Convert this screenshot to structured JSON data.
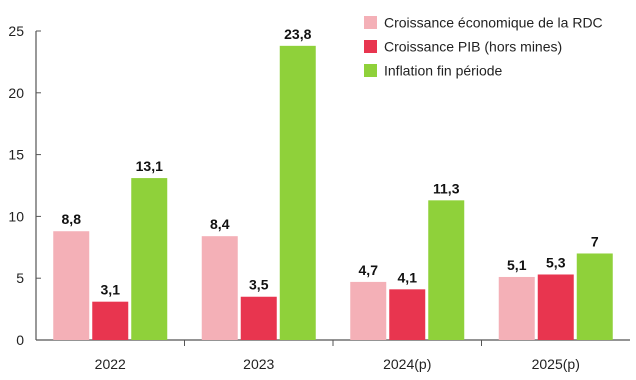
{
  "chart_data": {
    "type": "bar",
    "categories": [
      "2022",
      "2023",
      "2024(p)",
      "2025(p)"
    ],
    "series": [
      {
        "name": "Croissance économique de la RDC",
        "values": [
          8.8,
          8.4,
          4.7,
          5.1
        ],
        "labels": [
          "8,8",
          "8,4",
          "4,7",
          "5,1"
        ],
        "color": "#f4b0b7"
      },
      {
        "name": "Croissance PIB (hors mines)",
        "values": [
          3.1,
          3.5,
          4.1,
          5.3
        ],
        "labels": [
          "3,1",
          "3,5",
          "4,1",
          "5,3"
        ],
        "color": "#e8354f"
      },
      {
        "name": "Inflation fin période",
        "values": [
          13.1,
          23.8,
          11.3,
          7
        ],
        "labels": [
          "13,1",
          "23,8",
          "11,3",
          "7"
        ],
        "color": "#8fd13a"
      }
    ],
    "y_ticks": [
      "0",
      "5",
      "10",
      "15",
      "20",
      "25"
    ],
    "y_tick_values": [
      0,
      5,
      10,
      15,
      20,
      25
    ],
    "ylim": [
      0,
      25
    ],
    "legend_position": "top-right",
    "grid": false
  }
}
